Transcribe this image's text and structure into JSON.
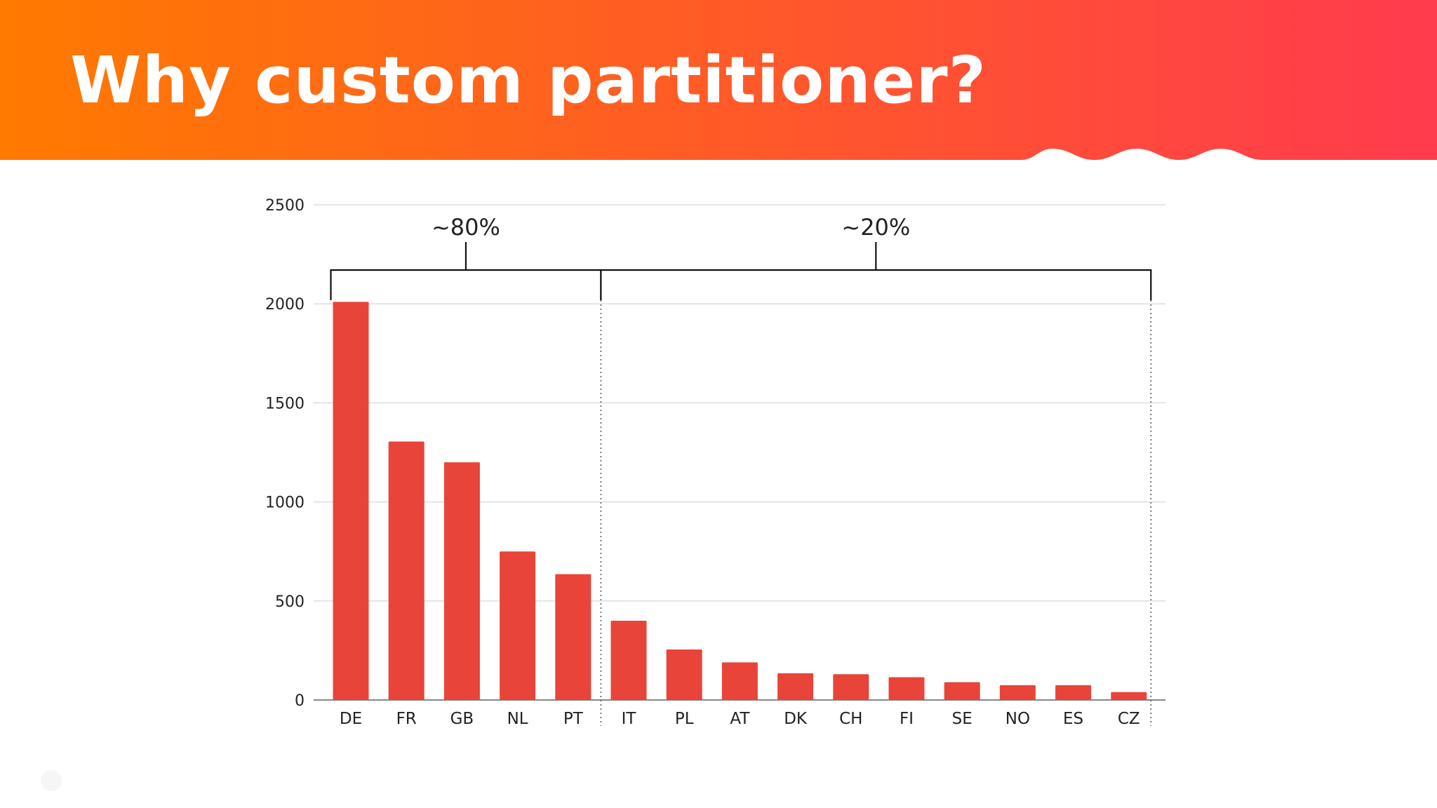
{
  "slide": {
    "title": "Why custom partitioner?"
  },
  "colors": {
    "header_start": "#ff7a00",
    "header_end": "#ff3b4e",
    "bar": "#e8443a",
    "grid": "#dddddd",
    "bracket": "#111111"
  },
  "chart_data": {
    "type": "bar",
    "categories": [
      "DE",
      "FR",
      "GB",
      "NL",
      "PT",
      "IT",
      "PL",
      "AT",
      "DK",
      "CH",
      "FI",
      "SE",
      "NO",
      "ES",
      "CZ"
    ],
    "values": [
      2010,
      1305,
      1200,
      750,
      635,
      400,
      255,
      190,
      135,
      130,
      115,
      90,
      75,
      75,
      40
    ],
    "ylim": [
      0,
      2500
    ],
    "yticks": [
      0,
      500,
      1000,
      1500,
      2000,
      2500
    ],
    "grid": true,
    "legend": "none",
    "annotations": [
      {
        "label": "~80%",
        "from": "DE",
        "to": "PT"
      },
      {
        "label": "~20%",
        "from": "IT",
        "to": "CZ"
      }
    ]
  }
}
